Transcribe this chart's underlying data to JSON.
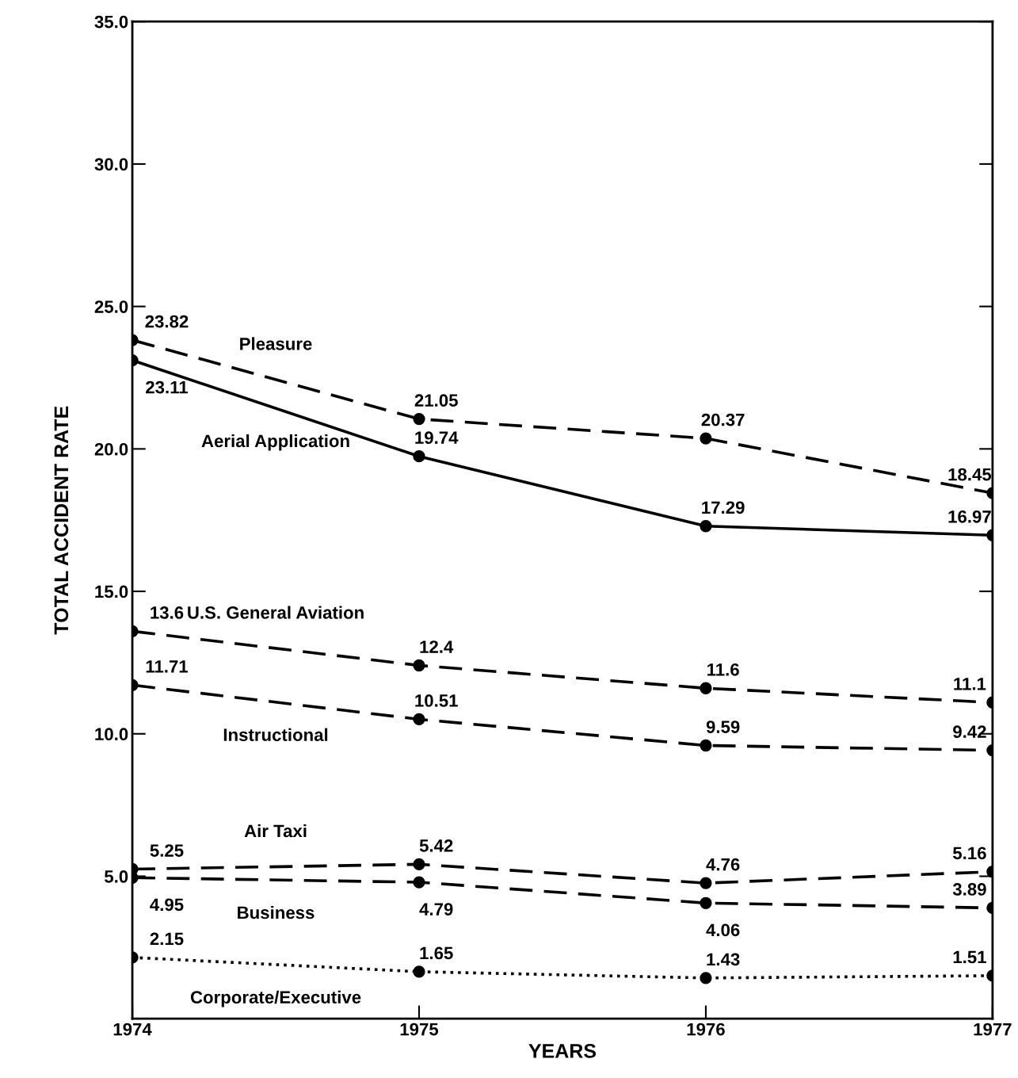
{
  "chart_data": {
    "type": "line",
    "xlabel": "YEARS",
    "ylabel": "TOTAL ACCIDENT RATE",
    "x": [
      1974,
      1975,
      1976,
      1977
    ],
    "series": [
      {
        "name": "Pleasure",
        "color": "#000000",
        "line_style": "dashed",
        "values": [
          23.82,
          21.05,
          20.37,
          18.45
        ]
      },
      {
        "name": "Aerial Application",
        "color": "#000000",
        "line_style": "solid",
        "values": [
          23.11,
          19.74,
          17.29,
          16.97
        ]
      },
      {
        "name": "U.S. General Aviation",
        "color": "#000000",
        "line_style": "dashed",
        "values": [
          13.6,
          12.4,
          11.6,
          11.1
        ],
        "value_labels": [
          "13.6",
          "12.4",
          "11.6",
          "11.1"
        ]
      },
      {
        "name": "Instructional",
        "color": "#000000",
        "line_style": "dashed",
        "values": [
          11.71,
          10.51,
          9.59,
          9.42
        ]
      },
      {
        "name": "Air Taxi",
        "color": "#000000",
        "line_style": "dashed",
        "values": [
          5.25,
          5.42,
          4.76,
          5.16
        ]
      },
      {
        "name": "Business",
        "color": "#000000",
        "line_style": "dashed",
        "values": [
          4.95,
          4.79,
          4.06,
          3.89
        ]
      },
      {
        "name": "Corporate/Executive",
        "color": "#000000",
        "line_style": "dotted",
        "values": [
          2.15,
          1.65,
          1.43,
          1.51
        ]
      }
    ],
    "data_labels": true,
    "marker": "circle",
    "grid": false,
    "legend": false,
    "xlim": [
      1974,
      1977
    ],
    "xticks": [
      1974,
      1975,
      1976,
      1977
    ],
    "ylim": [
      0,
      35
    ],
    "yticks": [
      {
        "value": 5,
        "label": "5.0"
      },
      {
        "value": 10,
        "label": "10.0"
      },
      {
        "value": 15,
        "label": "15.0"
      },
      {
        "value": 20,
        "label": "20.0"
      },
      {
        "value": 25,
        "label": "25.0"
      },
      {
        "value": 30,
        "label": "30.0"
      },
      {
        "value": 35,
        "label": "35.0"
      }
    ]
  }
}
